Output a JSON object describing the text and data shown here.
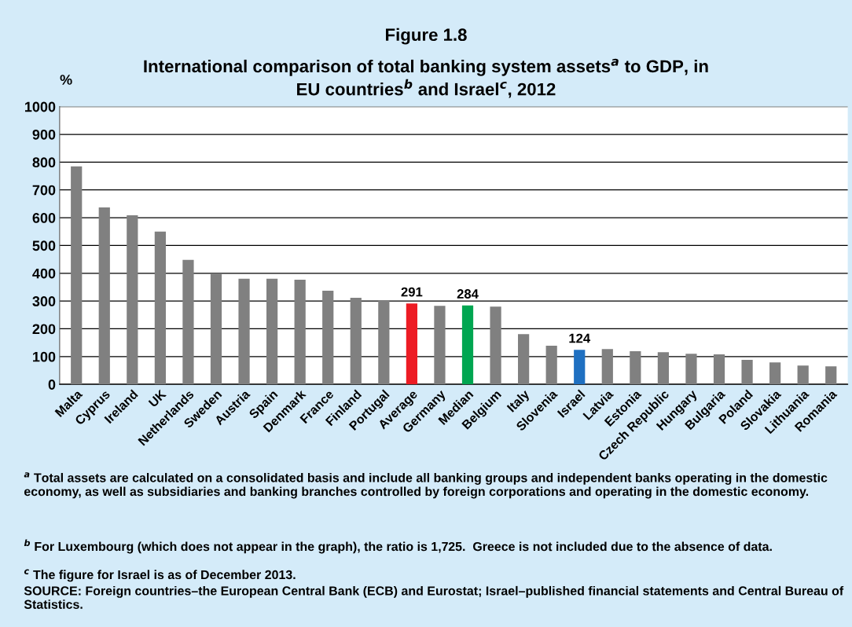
{
  "chart_data": {
    "type": "bar",
    "title": "Figure 1.8",
    "subtitle": "International comparison of total banking system assets$^{a}$ to GDP, in\nEU countries$^{b}$ and Israel$^{c}$, 2012",
    "ylabel": "%",
    "categories": [
      "Malta",
      "Cyprus",
      "Ireland",
      "UK",
      "Netherlands",
      "Sweden",
      "Austria",
      "Spain",
      "Denmark",
      "France",
      "Finland",
      "Portugal",
      "Average",
      "Germany",
      "Median",
      "Belgium",
      "Italy",
      "Slovenia",
      "Israel",
      "Latvia",
      "Estonia",
      "Czech Republic",
      "Hungary",
      "Bulgaria",
      "Poland",
      "Slovakia",
      "Lithuania",
      "Romania"
    ],
    "values": [
      785,
      637,
      609,
      550,
      448,
      399,
      380,
      380,
      377,
      337,
      312,
      300,
      291,
      283,
      284,
      280,
      181,
      139,
      124,
      127,
      119,
      116,
      110,
      108,
      88,
      79,
      68,
      65
    ],
    "colors": [
      "#808080",
      "#808080",
      "#808080",
      "#808080",
      "#808080",
      "#808080",
      "#808080",
      "#808080",
      "#808080",
      "#808080",
      "#808080",
      "#808080",
      "#ed1c24",
      "#808080",
      "#00a651",
      "#808080",
      "#808080",
      "#808080",
      "#1f70c1",
      "#808080",
      "#808080",
      "#808080",
      "#808080",
      "#808080",
      "#808080",
      "#808080",
      "#808080",
      "#808080"
    ],
    "value_labels": [
      null,
      null,
      null,
      null,
      null,
      null,
      null,
      null,
      null,
      null,
      null,
      null,
      "291",
      null,
      "284",
      null,
      null,
      null,
      "124",
      null,
      null,
      null,
      null,
      null,
      null,
      null,
      null,
      null
    ],
    "ylim": [
      0,
      1000
    ],
    "yticks": [
      0,
      100,
      200,
      300,
      400,
      500,
      600,
      700,
      800,
      900,
      1000
    ],
    "grid": "y",
    "legend": false,
    "annotations": [
      "$^{a}$ Total assets are calculated on a consolidated basis and include all banking groups and independent banks operating in the domestic economy, as well as subsidiaries and banking branches controlled by foreign corporations and operating in the domestic economy.",
      "$^{b}$ For Luxembourg (which does not appear in the graph), the ratio is 1,725.  Greece is not included due to the absence of data.",
      "$^{c}$ The figure for Israel is as of December 2013.",
      "SOURCE: Foreign countries–the European Central Bank (ECB) and Eurostat; Israel–published financial statements and Central Bureau of Statistics."
    ]
  }
}
